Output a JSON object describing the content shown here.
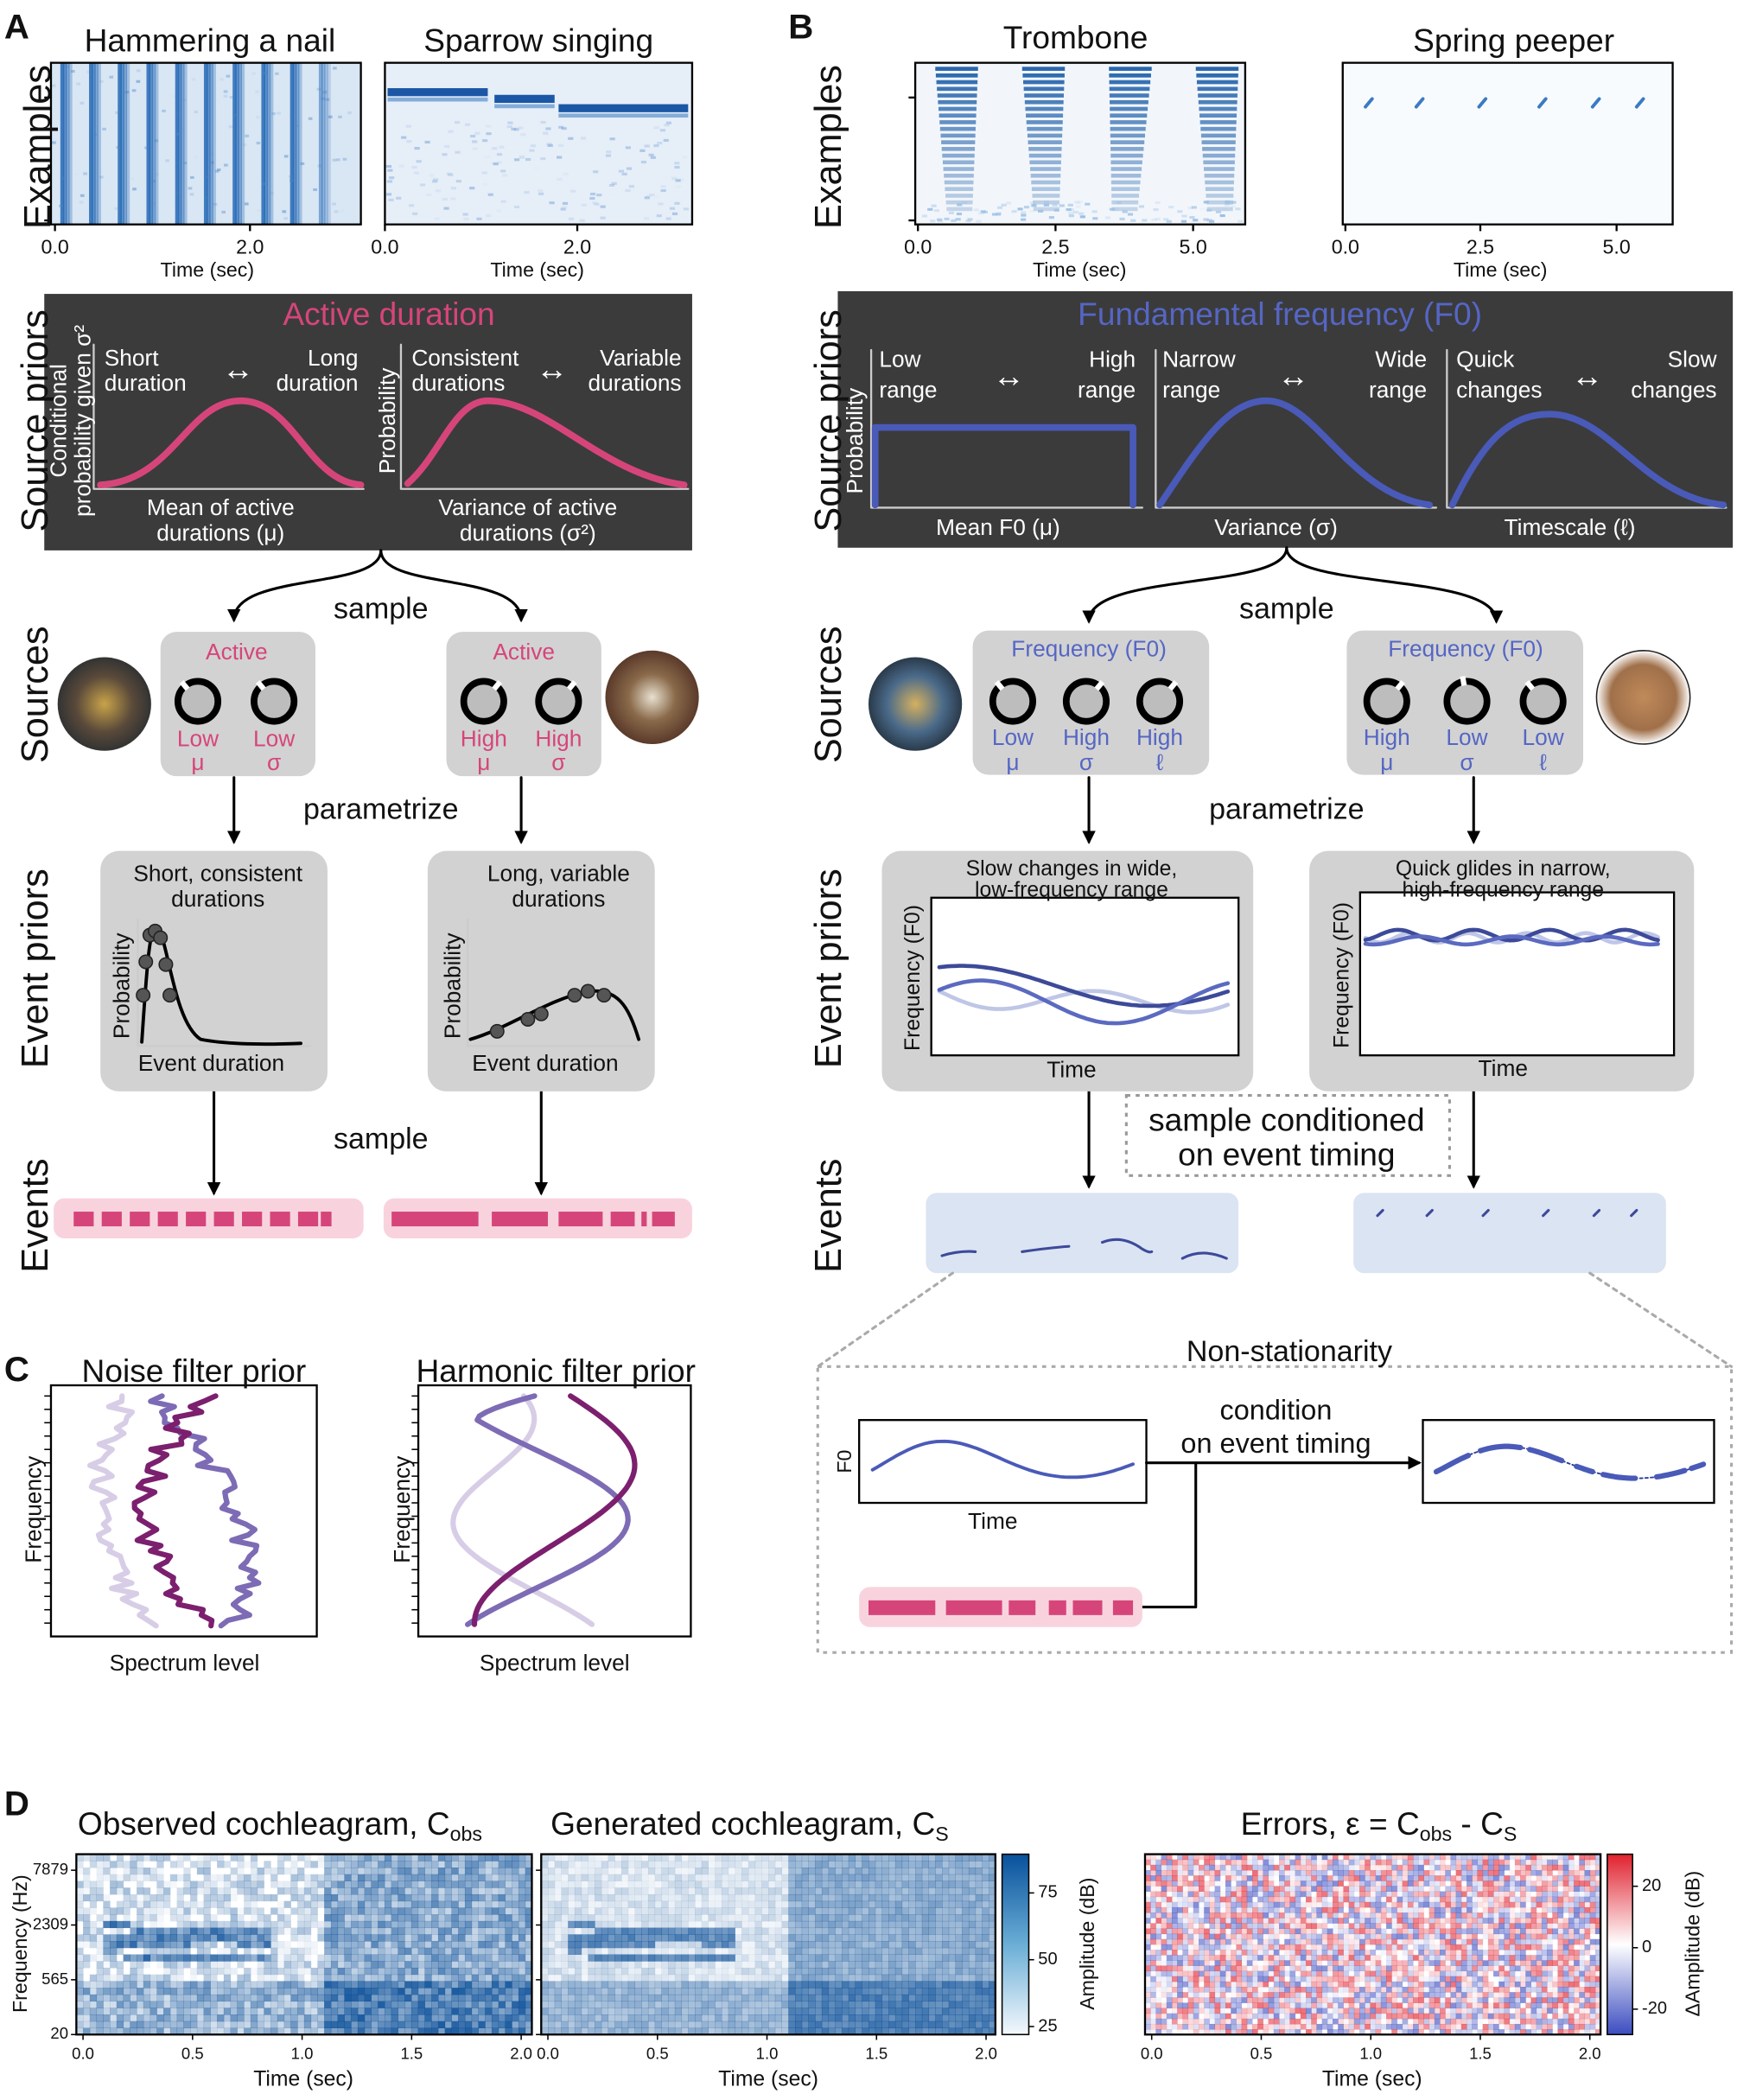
{
  "A": {
    "letter": "A",
    "examples": "Examples",
    "example_titles": [
      "Hammering a nail",
      "Sparrow singing"
    ],
    "example_ticks": [
      [
        "0.0",
        "2.0"
      ],
      [
        "0.0",
        "2.0"
      ]
    ],
    "example_xlabel": [
      "Time (sec)",
      "Time (sec)"
    ],
    "source_priors": "Source priors",
    "prior_title": "Active duration",
    "prior_ylabels": [
      [
        "Conditional",
        "probability given σ²"
      ],
      [
        "Probability"
      ]
    ],
    "prior_left": [
      [
        "Short",
        "duration"
      ],
      [
        "Consistent",
        "durations"
      ]
    ],
    "prior_arrows": [
      "↔",
      "↔"
    ],
    "prior_right": [
      [
        "Long",
        "duration"
      ],
      [
        "Variable",
        "durations"
      ]
    ],
    "prior_xlabels": [
      [
        "Mean of active",
        "durations (μ)"
      ],
      [
        "Variance of active",
        "durations (σ²)"
      ]
    ],
    "sample": "sample",
    "sources": "Sources",
    "source_titles": [
      "Active",
      "Active"
    ],
    "source_params": [
      [
        [
          "Low",
          "μ"
        ],
        [
          "Low",
          "σ"
        ]
      ],
      [
        [
          "High",
          "μ"
        ],
        [
          "High",
          "σ"
        ]
      ]
    ],
    "parametrize": "parametrize",
    "event_priors": "Event priors",
    "event_prior_titles": [
      [
        "Short, consistent",
        "durations"
      ],
      [
        "Long, variable",
        "durations"
      ]
    ],
    "event_prior_ylabel": [
      "Probability",
      "Probability"
    ],
    "event_prior_xlabel": [
      "Event duration",
      "Event duration"
    ],
    "sample_again": "sample",
    "events": "Events"
  },
  "B": {
    "letter": "B",
    "examples": "Examples",
    "example_titles": [
      "Trombone",
      "Spring peeper"
    ],
    "example_ticks": [
      [
        "0.0",
        "2.5",
        "5.0"
      ],
      [
        "0.0",
        "2.5",
        "5.0"
      ]
    ],
    "example_xlabel": [
      "Time (sec)",
      "Time (sec)"
    ],
    "source_priors": "Source priors",
    "prior_title": "Fundamental frequency (F0)",
    "prior_ylabel": "Probability",
    "prior_left": [
      [
        "Low",
        "range"
      ],
      [
        "Narrow",
        "range"
      ],
      [
        "Quick",
        "changes"
      ]
    ],
    "prior_arrows": [
      "↔",
      "↔",
      "↔"
    ],
    "prior_right": [
      [
        "High",
        "range"
      ],
      [
        "Wide",
        "range"
      ],
      [
        "Slow",
        "changes"
      ]
    ],
    "prior_xlabels": [
      "Mean F0 (μ)",
      "Variance (σ)",
      "Timescale (ℓ)"
    ],
    "sample": "sample",
    "sources": "Sources",
    "source_titles": [
      "Frequency (F0)",
      "Frequency (F0)"
    ],
    "source_params": [
      [
        [
          "Low",
          "μ"
        ],
        [
          "High",
          "σ"
        ],
        [
          "High",
          "ℓ"
        ]
      ],
      [
        [
          "High",
          "μ"
        ],
        [
          "Low",
          "σ"
        ],
        [
          "Low",
          "ℓ"
        ]
      ]
    ],
    "parametrize": "parametrize",
    "event_priors": "Event priors",
    "event_prior_titles": [
      [
        "Slow changes in wide,",
        "low-frequency range"
      ],
      [
        "Quick glides in narrow,",
        "high-frequency range"
      ]
    ],
    "event_prior_ylabel": [
      "Frequency (F0)",
      "Frequency (F0)"
    ],
    "event_prior_xlabel": [
      "Time",
      "Time"
    ],
    "conditioned": [
      "sample conditioned",
      "on event timing"
    ],
    "events": "Events",
    "nonstationarity": {
      "title": "Non-stationarity",
      "ylabel": "F0",
      "xlabel": "Time",
      "condition": [
        "condition",
        "on event timing"
      ]
    }
  },
  "C": {
    "letter": "C",
    "titles": [
      "Noise filter prior",
      "Harmonic filter prior"
    ],
    "ylabel": [
      "Frequency",
      "Frequency"
    ],
    "xlabel": [
      "Spectrum level",
      "Spectrum level"
    ]
  },
  "D": {
    "letter": "D",
    "titles": [
      [
        "Observed cochleagram, C",
        "obs"
      ],
      [
        "Generated cochleagram, C",
        "S"
      ],
      [
        "Errors, ε = C",
        "obs",
        " - C",
        "S"
      ]
    ],
    "yticks": [
      "7879",
      "2309",
      "565",
      "20"
    ],
    "ylabel": "Frequency (Hz)",
    "xticks": [
      [
        "0.0",
        "0.5",
        "1.0",
        "1.5",
        "2.0"
      ],
      [
        "0.0",
        "0.5",
        "1.0",
        "1.5",
        "2.0"
      ],
      [
        "0.0",
        "0.5",
        "1.0",
        "1.5",
        "2.0"
      ]
    ],
    "xlabel": [
      "Time (sec)",
      "Time (sec)",
      "Time (sec)"
    ],
    "cbar_ticks": [
      [
        "75",
        "50",
        "25"
      ],
      [
        "20",
        "0",
        "-20"
      ]
    ],
    "cbar_labels": [
      "Amplitude (dB)",
      "ΔAmplitude (dB)"
    ]
  }
}
